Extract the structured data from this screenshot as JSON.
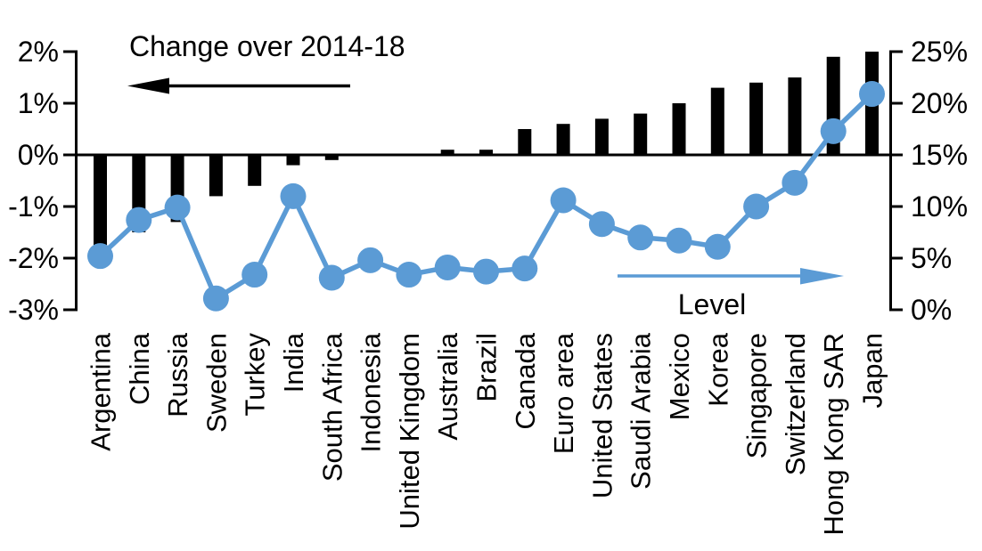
{
  "chart_data": {
    "type": "bar",
    "subtype": "bar-line-combo",
    "grid": false,
    "categories": [
      "Argentina",
      "China",
      "Russia",
      "Sweden",
      "Turkey",
      "India",
      "South Africa",
      "Indonesia",
      "United Kingdom",
      "Australia",
      "Brazil",
      "Canada",
      "Euro area",
      "United States",
      "Saudi Arabia",
      "Mexico",
      "Korea",
      "Singapore",
      "Switzerland",
      "Hong Kong SAR",
      "Japan"
    ],
    "series": [
      {
        "name": "Change over 2014-18",
        "type": "bar",
        "axis": "left",
        "unit": "%",
        "values": [
          -1.8,
          -1.5,
          -1.3,
          -0.8,
          -0.6,
          -0.2,
          -0.1,
          0,
          0,
          0.1,
          0.1,
          0.5,
          0.6,
          0.7,
          0.8,
          1.0,
          1.3,
          1.4,
          1.5,
          1.9,
          2.0
        ]
      },
      {
        "name": "Level",
        "type": "line",
        "axis": "right",
        "unit": "%",
        "values": [
          5.2,
          8.7,
          9.9,
          1.1,
          3.4,
          11.0,
          3.1,
          4.8,
          3.4,
          4.1,
          3.7,
          4.0,
          10.6,
          8.3,
          7.0,
          6.7,
          6.1,
          10.0,
          12.3,
          17.3,
          20.9
        ]
      }
    ],
    "left_axis": {
      "tick_labels": [
        "2%",
        "1%",
        "0%",
        "-1%",
        "-2%",
        "-3%"
      ],
      "tick_values": [
        2,
        1,
        0,
        -1,
        -2,
        -3
      ],
      "range": [
        -3,
        2
      ]
    },
    "right_axis": {
      "tick_labels": [
        "25%",
        "20%",
        "15%",
        "10%",
        "5%",
        "0%"
      ],
      "tick_values": [
        25,
        20,
        15,
        10,
        5,
        0
      ],
      "range": [
        0,
        25
      ]
    },
    "annotations": {
      "bar_series_label": "Change over 2014-18",
      "line_series_label": "Level"
    },
    "colors": {
      "bar": "#000000",
      "line": "#5B9BD5",
      "axis": "#000000"
    },
    "legend_position": "in-plot annotations with arrows"
  }
}
